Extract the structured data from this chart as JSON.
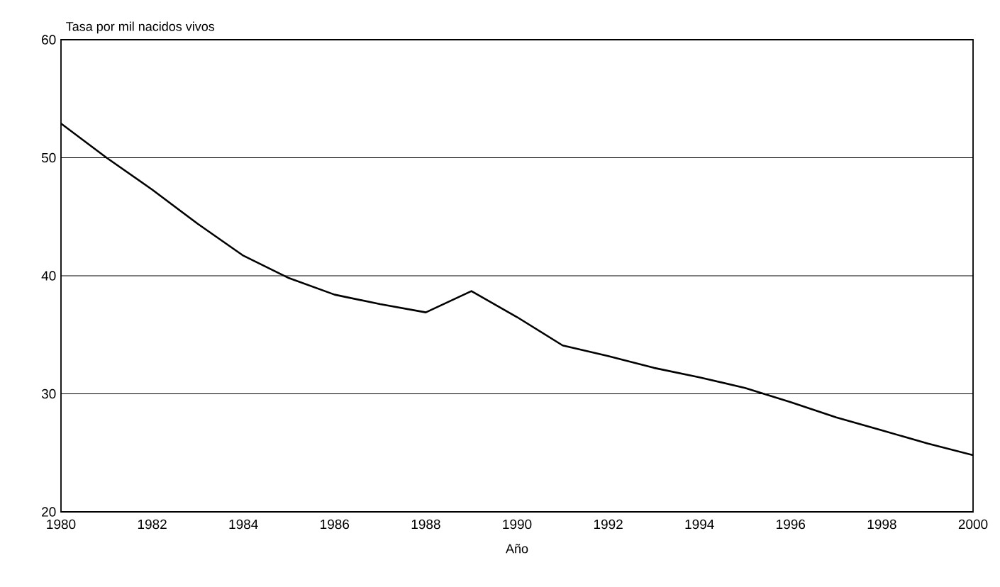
{
  "chart_data": {
    "type": "line",
    "xlabel": "Año",
    "ylabel": "Tasa por mil nacidos vivos",
    "x": [
      1980,
      1981,
      1982,
      1983,
      1984,
      1985,
      1986,
      1987,
      1988,
      1989,
      1990,
      1991,
      1992,
      1993,
      1994,
      1995,
      1996,
      1997,
      1998,
      1999,
      2000
    ],
    "series": [
      {
        "color": "#000000",
        "values": [
          52.9,
          50.0,
          47.3,
          44.4,
          41.7,
          39.8,
          38.4,
          37.6,
          36.9,
          38.7,
          36.5,
          34.1,
          33.2,
          32.2,
          31.4,
          30.5,
          29.3,
          28.0,
          26.9,
          25.8,
          24.8
        ]
      }
    ],
    "xlim": [
      1980,
      2000
    ],
    "xticks": [
      1980,
      1982,
      1984,
      1986,
      1988,
      1990,
      1992,
      1994,
      1996,
      1998,
      2000
    ],
    "ylim": [
      20,
      60
    ],
    "yticks": [
      20,
      30,
      40,
      50,
      60
    ],
    "grid": "y",
    "marker": "none",
    "line_style": "solid",
    "legend": false
  }
}
